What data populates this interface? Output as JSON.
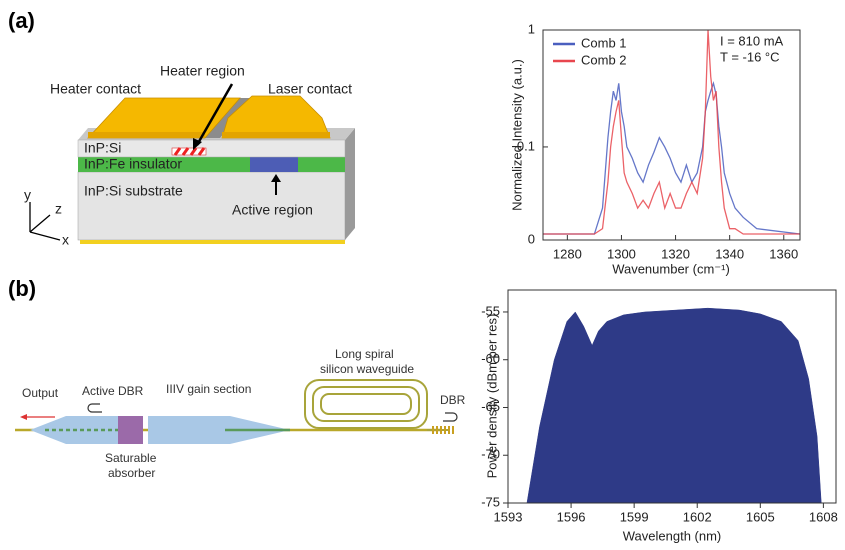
{
  "panel_labels": [
    "(a)",
    "(b)"
  ],
  "diagram_a": {
    "heater_contact": "Heater contact",
    "heater_region": "Heater region",
    "laser_contact": "Laser contact",
    "top_layer": "InP:Si",
    "insulator": "InP:Fe  insulator",
    "substrate": "InP:Si  substrate",
    "active_region": "Active region",
    "axis_y": "y",
    "axis_z": "z",
    "axis_x": "x"
  },
  "diagram_b": {
    "output": "Output",
    "active_dbr": "Active DBR",
    "gain_section": "IIIV gain section",
    "spiral_line1": "Long spiral",
    "spiral_line2": "silicon waveguide",
    "dbr": "DBR",
    "absorber_line1": "Saturable",
    "absorber_line2": "absorber"
  },
  "chart_data": [
    {
      "type": "line",
      "log_y": true,
      "x_label": "Wavenumber (cm⁻¹)",
      "y_label": "Normalized Intensity (a.u.)",
      "annotations": [
        "I = 810 mA",
        "T = -16 °C"
      ],
      "legend": "upper left",
      "x": [
        1271,
        1290,
        1293,
        1295,
        1296,
        1297,
        1298,
        1299,
        1300,
        1301,
        1302,
        1304,
        1306,
        1308,
        1310,
        1312,
        1314,
        1316,
        1318,
        1320,
        1322,
        1324,
        1326,
        1328,
        1330,
        1331,
        1332,
        1333,
        1334,
        1335,
        1336,
        1337,
        1338,
        1340,
        1342,
        1345,
        1350,
        1366
      ],
      "series": [
        {
          "name": "Comb 1",
          "color": "#4a5fbf",
          "values": [
            0.018,
            0.018,
            0.03,
            0.12,
            0.2,
            0.3,
            0.25,
            0.35,
            0.2,
            0.15,
            0.1,
            0.08,
            0.06,
            0.05,
            0.07,
            0.09,
            0.12,
            0.1,
            0.08,
            0.06,
            0.05,
            0.07,
            0.05,
            0.06,
            0.1,
            0.2,
            0.25,
            0.3,
            0.35,
            0.28,
            0.15,
            0.1,
            0.06,
            0.04,
            0.03,
            0.025,
            0.02,
            0.018
          ]
        },
        {
          "name": "Comb 2",
          "color": "#e8464e",
          "values": [
            0.018,
            0.018,
            0.02,
            0.05,
            0.1,
            0.15,
            0.2,
            0.25,
            0.12,
            0.06,
            0.05,
            0.04,
            0.03,
            0.035,
            0.03,
            0.04,
            0.05,
            0.03,
            0.04,
            0.03,
            0.03,
            0.04,
            0.05,
            0.04,
            0.08,
            0.2,
            1,
            0.4,
            0.25,
            0.3,
            0.1,
            0.05,
            0.03,
            0.02,
            0.02,
            0.018,
            0.018,
            0.018
          ]
        }
      ],
      "xlim": [
        1271,
        1366
      ],
      "xticks": [
        1280,
        1300,
        1320,
        1340,
        1360
      ],
      "ylim": [
        0.016,
        1
      ],
      "yticks": [
        {
          "value": 0.016,
          "label": "0"
        },
        0.1,
        1
      ]
    },
    {
      "type": "area",
      "x_label": "Wavelength (nm)",
      "y_label": "Power density (dBm per res)",
      "color": "#2e3a87",
      "x": [
        1593.9,
        1594.5,
        1595.2,
        1595.8,
        1596.2,
        1596.6,
        1597.0,
        1597.3,
        1597.7,
        1598.5,
        1599.5,
        1601,
        1602.5,
        1604,
        1605,
        1606,
        1606.8,
        1607.3,
        1607.7,
        1607.9
      ],
      "values": [
        -75,
        -67,
        -60,
        -56,
        -55,
        -56.5,
        -58.5,
        -57,
        -56,
        -55.3,
        -55,
        -54.8,
        -54.6,
        -54.8,
        -55.2,
        -56,
        -58,
        -62,
        -68,
        -75
      ],
      "xlim": [
        1593,
        1608.6
      ],
      "xticks": [
        1593,
        1596,
        1599,
        1602,
        1605,
        1608
      ],
      "ylim": [
        -75,
        -52.7
      ],
      "yticks": [
        -75,
        -70,
        -65,
        -60,
        -55
      ]
    }
  ]
}
